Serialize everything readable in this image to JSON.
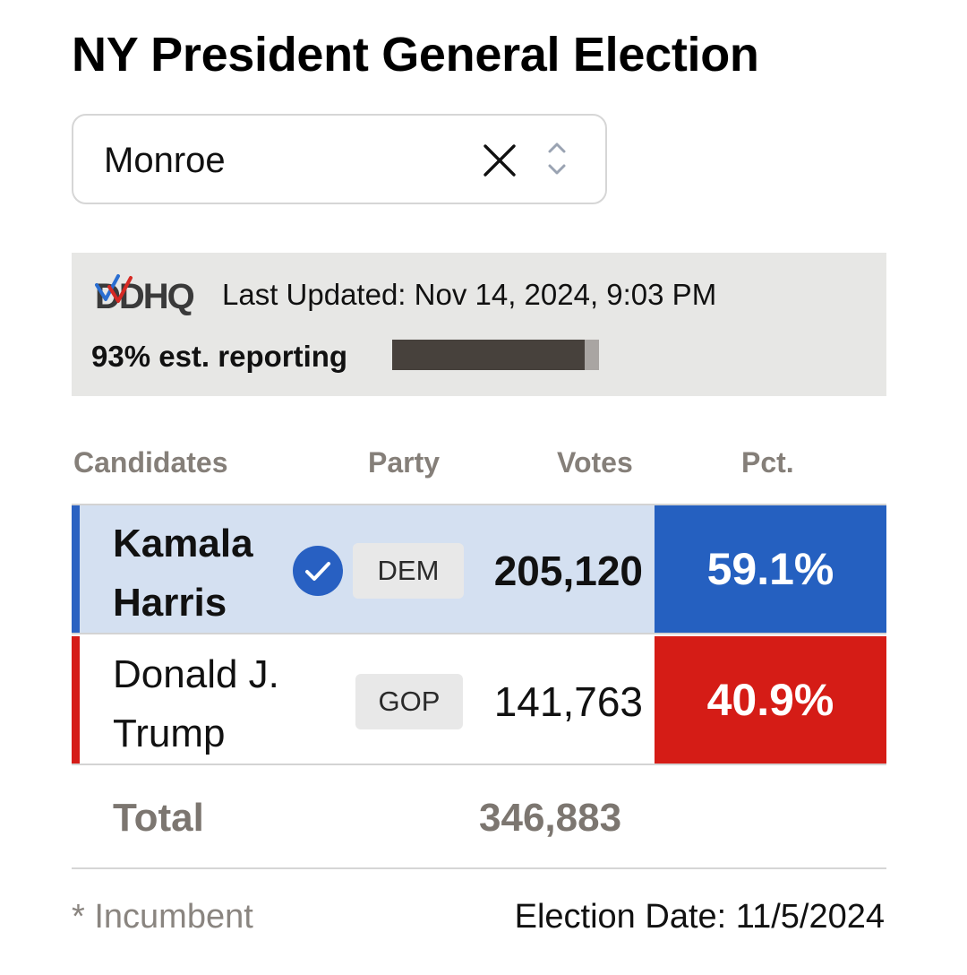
{
  "page": {
    "title": "NY President General Election"
  },
  "county_select": {
    "value": "Monroe",
    "clear_icon": "close-icon",
    "toggle_icon": "chevron-up-down-icon"
  },
  "status": {
    "logo_text": "DDHQ",
    "last_updated": "Last Updated: Nov 14, 2024, 9:03 PM",
    "reporting_label": "93% est. reporting",
    "reporting_fraction": 0.93
  },
  "table": {
    "headers": {
      "candidates": "Candidates",
      "party": "Party",
      "votes": "Votes",
      "pct": "Pct."
    },
    "rows": [
      {
        "name": "Kamala Harris",
        "winner": true,
        "winner_icon": "check-circle-icon",
        "party": "DEM",
        "votes": "205,120",
        "pct": "59.1%",
        "stripe_color": "#2b62c2",
        "row_bg": "#d4e0f1",
        "pct_bg": "#2560c0"
      },
      {
        "name": "Donald J. Trump",
        "winner": false,
        "party": "GOP",
        "votes": "141,763",
        "pct": "40.9%",
        "stripe_color": "#d51c18",
        "row_bg": "#ffffff",
        "pct_bg": "#d51c16"
      }
    ],
    "total_label": "Total",
    "total_votes": "346,883"
  },
  "footer": {
    "incumbent_note": "* Incumbent",
    "election_date": "Election Date: 11/5/2024"
  }
}
